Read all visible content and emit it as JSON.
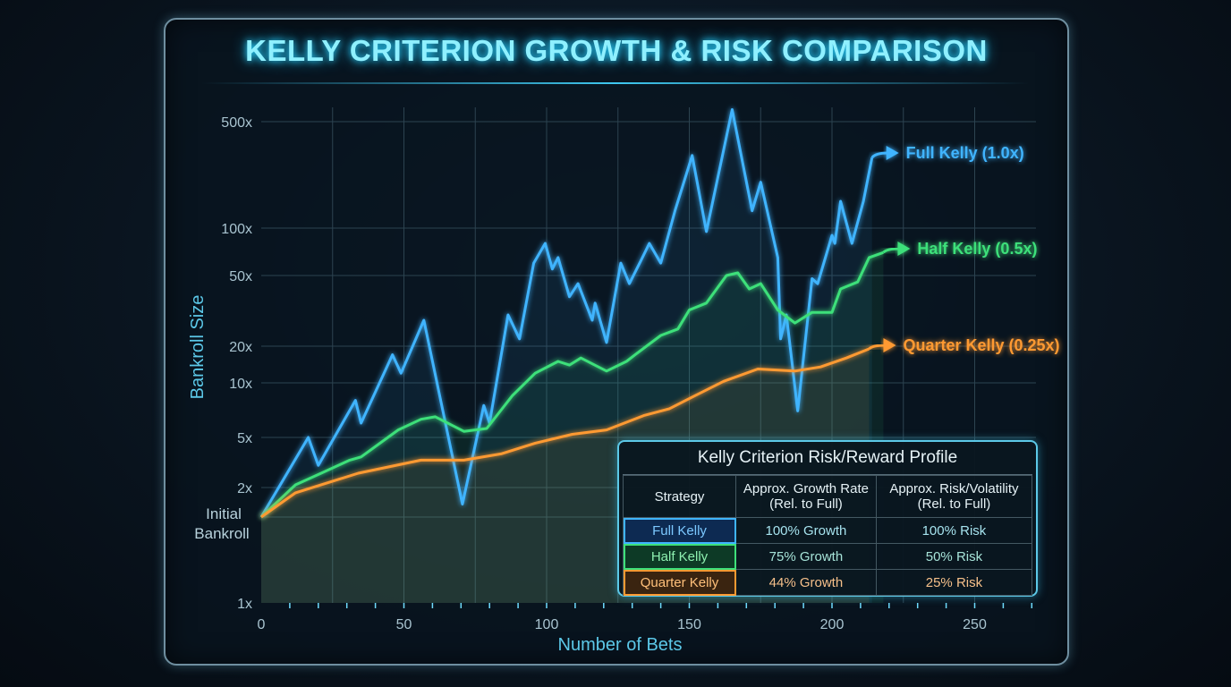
{
  "chart_data": {
    "type": "line",
    "title": "KELLY CRITERION GROWTH & RISK COMPARISON",
    "xlabel": "Number of Bets",
    "ylabel": "Bankroll Size",
    "xlim": [
      0,
      270
    ],
    "x_ticks": [
      {
        "label": "0",
        "value": 0
      },
      {
        "label": "50",
        "value": 50
      },
      {
        "label": "100",
        "value": 100
      },
      {
        "label": "150",
        "value": 150
      },
      {
        "label": "200",
        "value": 200
      },
      {
        "label": "250",
        "value": 250
      }
    ],
    "y_scale": "log (non-uniform)",
    "y_ticks": [
      {
        "label": "1x",
        "value": 1
      },
      {
        "label": "Initial Bankroll",
        "value": 1.5
      },
      {
        "label": "2x",
        "value": 2
      },
      {
        "label": "5x",
        "value": 5
      },
      {
        "label": "10x",
        "value": 10
      },
      {
        "label": "20x",
        "value": 20
      },
      {
        "label": "50x",
        "value": 50
      },
      {
        "label": "100x",
        "value": 100
      },
      {
        "label": "500x",
        "value": 500
      }
    ],
    "grid": true,
    "legend_placement": "right (end-of-line labels)",
    "series": [
      {
        "name": "Full Kelly (1.0x)",
        "color": "#3fb4ff",
        "x": [
          0,
          16.5,
          20,
          33,
          35,
          46,
          49,
          57,
          70.5,
          78,
          80,
          86.5,
          90.5,
          95.5,
          99.5,
          102,
          104,
          108,
          111,
          116,
          117,
          121,
          126,
          129,
          133,
          136,
          140,
          145,
          151,
          156,
          165,
          172,
          175,
          181,
          182,
          184,
          188,
          193,
          195,
          200,
          201,
          203,
          207,
          211,
          214
        ],
        "y": [
          1.5,
          5,
          3,
          8,
          6,
          17,
          12,
          28,
          1.7,
          7.5,
          6,
          30,
          22,
          60,
          80,
          55,
          65,
          38,
          45,
          28,
          35,
          21,
          60,
          45,
          62,
          80,
          60,
          130,
          300,
          95,
          600,
          130,
          200,
          65,
          22,
          30,
          7,
          48,
          45,
          90,
          80,
          150,
          80,
          150,
          290
        ]
      },
      {
        "name": "Half Kelly (0.5x)",
        "color": "#3ee07a",
        "x": [
          0,
          12,
          21,
          31,
          35,
          48,
          56,
          61,
          71,
          79,
          88,
          96,
          104,
          108,
          112,
          121,
          128,
          131,
          140,
          146,
          150,
          156,
          163,
          167,
          171,
          175,
          181,
          187,
          193,
          200,
          203,
          209,
          213,
          218
        ],
        "y": [
          1.5,
          2.1,
          2.6,
          3.3,
          3.5,
          5.5,
          6.3,
          6.5,
          5.4,
          5.6,
          8.5,
          12,
          15,
          14,
          16,
          12.5,
          15,
          17,
          23,
          25,
          32,
          35,
          50,
          52,
          42,
          45,
          32,
          27,
          31,
          31,
          42,
          46,
          65,
          70
        ]
      },
      {
        "name": "Quarter Kelly (0.25x)",
        "color": "#ff9a32",
        "x": [
          0,
          12,
          34,
          56,
          71,
          84,
          96,
          109,
          121,
          134,
          143,
          152,
          162,
          174,
          187,
          196,
          205,
          213
        ],
        "y": [
          1.5,
          1.9,
          2.6,
          3.3,
          3.3,
          3.7,
          4.5,
          5.2,
          5.5,
          6.6,
          7.2,
          8.5,
          10.3,
          13,
          12.5,
          13.5,
          16,
          19
        ]
      }
    ]
  },
  "table": {
    "title": "Kelly Criterion Risk/Reward Profile",
    "headers": [
      "Strategy",
      "Approx. Growth Rate (Rel. to Full)",
      "Approx. Risk/Volatility (Rel. to Full)"
    ],
    "rows": [
      {
        "strategy": "Full Kelly",
        "growth": "100% Growth",
        "risk": "100% Risk",
        "color": "#3fb4ff"
      },
      {
        "strategy": "Half Kelly",
        "growth": "75% Growth",
        "risk": "50% Risk",
        "color": "#3ee07a"
      },
      {
        "strategy": "Quarter Kelly",
        "growth": "44% Growth",
        "risk": "25% Risk",
        "color": "#ff9a32"
      }
    ]
  }
}
